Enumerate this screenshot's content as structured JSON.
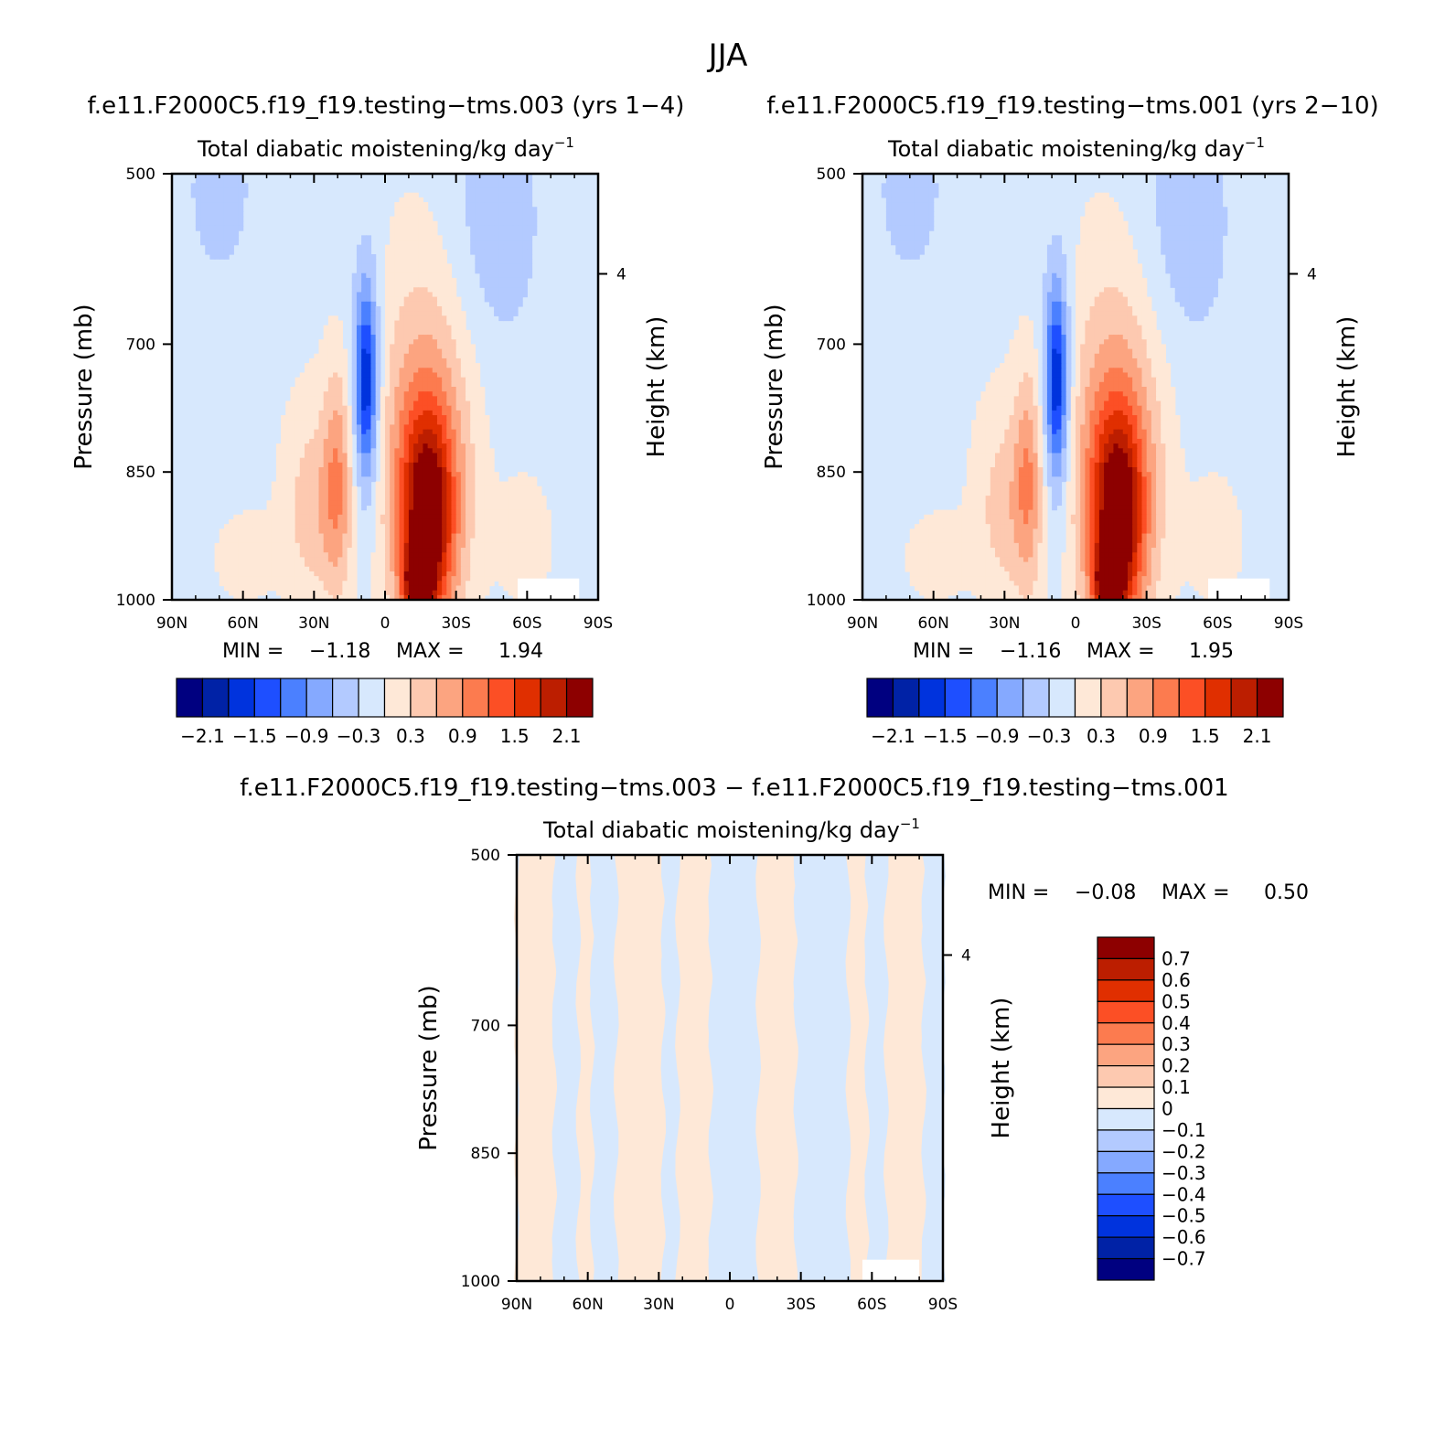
{
  "figure": {
    "title": "JJA"
  },
  "chart_data": [
    {
      "type": "heatmap",
      "id": "panel-1",
      "title": "f.e11.F2000C5.f19_f19.testing−tms.003 (yrs 1−4)",
      "subtitle": "Total diabatic moistening/kg day",
      "subtitle_sup": "−1",
      "xlabel": "",
      "ylabel": "Pressure (mb)",
      "ylabel_right": "Height (km)",
      "x_ticks": [
        "90N",
        "60N",
        "30N",
        "0",
        "30S",
        "60S",
        "90S"
      ],
      "y_ticks": [
        "500",
        "700",
        "850",
        "1000"
      ],
      "right_ticks": [
        "4"
      ],
      "stats": {
        "min_label": "MIN =",
        "min": "−1.18",
        "max_label": "MAX =",
        "max": "1.94"
      },
      "colorbar_labels": [
        "−2.1",
        "−1.5",
        "−0.9",
        "−0.3",
        "0.3",
        "0.9",
        "1.5",
        "2.1"
      ],
      "features": [
        {
          "cx": 30,
          "cy": 850,
          "rx": 18,
          "ry": 160,
          "v": 0.2
        },
        {
          "cx": 30,
          "cy": 900,
          "rx": 12,
          "ry": 110,
          "v": 0.45
        },
        {
          "cx": 60,
          "cy": 950,
          "rx": 14,
          "ry": 60,
          "v": 0.3
        },
        {
          "cx": 8,
          "cy": 760,
          "rx": 7,
          "ry": 160,
          "v": -0.75
        },
        {
          "cx": 8,
          "cy": 740,
          "rx": 4,
          "ry": 100,
          "v": -1.1
        },
        {
          "cx": -15,
          "cy": 800,
          "rx": 24,
          "ry": 260,
          "v": 0.5
        },
        {
          "cx": -18,
          "cy": 870,
          "rx": 16,
          "ry": 170,
          "v": 1.05
        },
        {
          "cx": -18,
          "cy": 910,
          "rx": 10,
          "ry": 110,
          "v": 1.6
        },
        {
          "cx": -14,
          "cy": 980,
          "rx": 6,
          "ry": 40,
          "v": 1.9
        },
        {
          "cx": -45,
          "cy": 560,
          "rx": 20,
          "ry": 160,
          "v": -0.35
        },
        {
          "cx": 70,
          "cy": 520,
          "rx": 12,
          "ry": 90,
          "v": -0.35
        },
        {
          "cx": 20,
          "cy": 860,
          "rx": 6,
          "ry": 130,
          "v": 0.8
        },
        {
          "cx": -60,
          "cy": 930,
          "rx": 12,
          "ry": 90,
          "v": 0.3
        }
      ]
    },
    {
      "type": "heatmap",
      "id": "panel-2",
      "title": "f.e11.F2000C5.f19_f19.testing−tms.001 (yrs 2−10)",
      "subtitle": "Total diabatic moistening/kg day",
      "subtitle_sup": "−1",
      "xlabel": "",
      "ylabel": "Pressure (mb)",
      "ylabel_right": "Height (km)",
      "x_ticks": [
        "90N",
        "60N",
        "30N",
        "0",
        "30S",
        "60S",
        "90S"
      ],
      "y_ticks": [
        "500",
        "700",
        "850",
        "1000"
      ],
      "right_ticks": [
        "4"
      ],
      "stats": {
        "min_label": "MIN =",
        "min": "−1.16",
        "max_label": "MAX =",
        "max": "1.95"
      },
      "colorbar_labels": [
        "−2.1",
        "−1.5",
        "−0.9",
        "−0.3",
        "0.3",
        "0.9",
        "1.5",
        "2.1"
      ],
      "features": [
        {
          "cx": 30,
          "cy": 850,
          "rx": 18,
          "ry": 160,
          "v": 0.2
        },
        {
          "cx": 30,
          "cy": 900,
          "rx": 12,
          "ry": 110,
          "v": 0.4
        },
        {
          "cx": 60,
          "cy": 950,
          "rx": 14,
          "ry": 60,
          "v": 0.3
        },
        {
          "cx": 8,
          "cy": 760,
          "rx": 7,
          "ry": 160,
          "v": -0.75
        },
        {
          "cx": 8,
          "cy": 740,
          "rx": 4,
          "ry": 100,
          "v": -1.1
        },
        {
          "cx": -15,
          "cy": 800,
          "rx": 24,
          "ry": 260,
          "v": 0.5
        },
        {
          "cx": -18,
          "cy": 870,
          "rx": 16,
          "ry": 170,
          "v": 1.05
        },
        {
          "cx": -18,
          "cy": 910,
          "rx": 10,
          "ry": 110,
          "v": 1.6
        },
        {
          "cx": -14,
          "cy": 980,
          "rx": 6,
          "ry": 40,
          "v": 1.9
        },
        {
          "cx": -45,
          "cy": 560,
          "rx": 20,
          "ry": 160,
          "v": -0.35
        },
        {
          "cx": 70,
          "cy": 520,
          "rx": 12,
          "ry": 90,
          "v": -0.35
        },
        {
          "cx": 20,
          "cy": 860,
          "rx": 6,
          "ry": 130,
          "v": 0.8
        },
        {
          "cx": -60,
          "cy": 930,
          "rx": 12,
          "ry": 90,
          "v": 0.3
        }
      ]
    },
    {
      "type": "heatmap",
      "id": "panel-3",
      "title": "f.e11.F2000C5.f19_f19.testing−tms.003 − f.e11.F2000C5.f19_f19.testing−tms.001",
      "subtitle": "Total diabatic moistening/kg day",
      "subtitle_sup": "−1",
      "xlabel": "",
      "ylabel": "Pressure (mb)",
      "ylabel_right": "Height (km)",
      "x_ticks": [
        "90N",
        "60N",
        "30N",
        "0",
        "30S",
        "60S",
        "90S"
      ],
      "y_ticks": [
        "500",
        "700",
        "850",
        "1000"
      ],
      "right_ticks": [
        "4"
      ],
      "stats": {
        "min_label": "MIN =",
        "min": "−0.08",
        "max_label": "MAX =",
        "max": "0.50"
      },
      "colorbar_labels": [
        "0.7",
        "0.6",
        "0.5",
        "0.4",
        "0.3",
        "0.2",
        "0.1",
        "0",
        "−0.1",
        "−0.2",
        "−0.3",
        "−0.4",
        "−0.5",
        "−0.6",
        "−0.7"
      ],
      "x_bands": [
        {
          "from": 90,
          "to": 74,
          "sign": 1
        },
        {
          "from": 74,
          "to": 64,
          "sign": -1
        },
        {
          "from": 64,
          "to": 58,
          "sign": 1
        },
        {
          "from": 58,
          "to": 48,
          "sign": -1
        },
        {
          "from": 48,
          "to": 28,
          "sign": 1
        },
        {
          "from": 28,
          "to": 22,
          "sign": -1
        },
        {
          "from": 22,
          "to": 8,
          "sign": 1
        },
        {
          "from": 8,
          "to": -12,
          "sign": -1
        },
        {
          "from": -12,
          "to": -28,
          "sign": 1
        },
        {
          "from": -28,
          "to": -50,
          "sign": -1
        },
        {
          "from": -50,
          "to": -58,
          "sign": 1
        },
        {
          "from": -58,
          "to": -66,
          "sign": -1
        },
        {
          "from": -66,
          "to": -82,
          "sign": 1
        },
        {
          "from": -82,
          "to": -90,
          "sign": -1
        }
      ]
    }
  ],
  "colors": {
    "scale16": [
      "#000080",
      "#0022a6",
      "#0033dd",
      "#1e4fff",
      "#4b80ff",
      "#85a9ff",
      "#b3caff",
      "#d7e8fd",
      "#fee8d7",
      "#fdc9b0",
      "#fca480",
      "#fc7b4f",
      "#fc4f25",
      "#e02f00",
      "#bc1e00",
      "#8d0000"
    ],
    "scale15": [
      "#000080",
      "#0022a6",
      "#0033dd",
      "#1e4fff",
      "#4b80ff",
      "#85a9ff",
      "#b3caff",
      "#d7e8fd",
      "#fee8d7",
      "#fdc9b0",
      "#fca480",
      "#fc7b4f",
      "#fc4f25",
      "#e02f00",
      "#bc1e00",
      "#8d0000"
    ],
    "bg_negative": "#d7e8fd",
    "bg_positive": "#fee8d7",
    "missing": "#ffffff"
  }
}
